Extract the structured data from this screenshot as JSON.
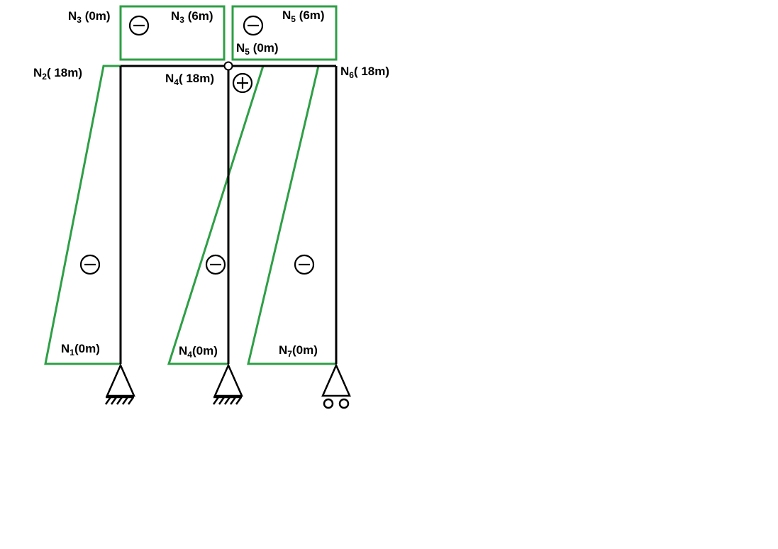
{
  "colors": {
    "structure": "#000000",
    "diagram": "#2e9f46",
    "background": "#ffffff"
  },
  "signs": {
    "minus": "−",
    "plus": "+"
  },
  "labels": {
    "n3_0": {
      "sym": "N",
      "sub": "3",
      "rest": " (0m)"
    },
    "n3_6": {
      "sym": "N",
      "sub": "3",
      "rest": " (6m)"
    },
    "n5_6": {
      "sym": "N",
      "sub": "5",
      "rest": " (6m)"
    },
    "n5_0": {
      "sym": "N",
      "sub": "5",
      "rest": "  (0m)"
    },
    "n2_18": {
      "sym": "N",
      "sub": "2",
      "rest": "( 18m)"
    },
    "n4_18": {
      "sym": "N",
      "sub": "4",
      "rest": "( 18m)"
    },
    "n6_18": {
      "sym": "N",
      "sub": "6",
      "rest": "( 18m)"
    },
    "n1_0": {
      "sym": "N",
      "sub": "1",
      "rest": "(0m)"
    },
    "n4_0": {
      "sym": "N",
      "sub": "4",
      "rest": "(0m)"
    },
    "n7_0": {
      "sym": "N",
      "sub": "7",
      "rest": "(0m)"
    }
  },
  "supports": [
    {
      "member": "left-column",
      "type": "fixed-pin"
    },
    {
      "member": "middle-column",
      "type": "fixed-pin"
    },
    {
      "member": "right-column",
      "type": "roller"
    }
  ]
}
